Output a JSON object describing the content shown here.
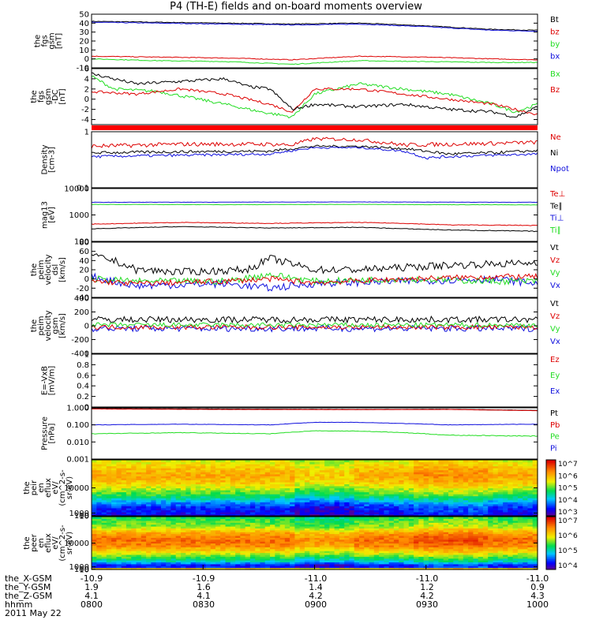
{
  "title": "P4 (TH-E) fields and on-board moments overview",
  "time_axis": {
    "ticks": [
      "0800",
      "0830",
      "0900",
      "0930",
      "1000"
    ],
    "row_labels": [
      "the_X-GSM",
      "the_Y-GSM",
      "the_Z-GSM",
      "hhmm",
      "2011 May 22"
    ],
    "ephem": [
      [
        "-10.9",
        "-10.9",
        "-11.0",
        "-11.0",
        "-11.0"
      ],
      [
        "1.9",
        "1.6",
        "1.4",
        "1.2",
        "0.9"
      ],
      [
        "4.1",
        "4.1",
        "4.2",
        "4.2",
        "4.3"
      ]
    ]
  },
  "colors": {
    "black": "#000000",
    "red": "#dd0000",
    "green": "#22dd22",
    "blue": "#1010dd"
  },
  "chart_data": [
    {
      "type": "line",
      "ylabel": [
        "the",
        "fgs",
        "gsm",
        "[nT]"
      ],
      "ylim": [
        -10,
        50
      ],
      "yticks": [
        50,
        40,
        30,
        20,
        10,
        0,
        -10
      ],
      "legend": [
        {
          "name": "Bt",
          "color": "black"
        },
        {
          "name": "bz",
          "color": "red"
        },
        {
          "name": "by",
          "color": "green"
        },
        {
          "name": "bx",
          "color": "blue"
        }
      ],
      "series": [
        {
          "name": "Bt",
          "color": "black",
          "x": [
            0,
            0.15,
            0.3,
            0.45,
            0.6,
            0.75,
            0.9,
            1
          ],
          "y": [
            42,
            41,
            40,
            39,
            40,
            37,
            33,
            32
          ],
          "noise": 0.4
        },
        {
          "name": "bx",
          "color": "blue",
          "x": [
            0,
            0.15,
            0.3,
            0.45,
            0.6,
            0.75,
            0.9,
            1
          ],
          "y": [
            41,
            40,
            39,
            38,
            39,
            36,
            32,
            31
          ],
          "noise": 0.4
        },
        {
          "name": "bz",
          "color": "red",
          "x": [
            0,
            0.15,
            0.3,
            0.45,
            0.6,
            0.75,
            0.9,
            1
          ],
          "y": [
            3,
            2,
            1,
            -1,
            3,
            2,
            0,
            -1
          ],
          "noise": 0.4
        },
        {
          "name": "by",
          "color": "green",
          "x": [
            0,
            0.15,
            0.3,
            0.45,
            0.6,
            0.75,
            0.9,
            1
          ],
          "y": [
            0,
            -2,
            -3,
            -6,
            -2,
            -3,
            -4,
            -4
          ],
          "noise": 0.4
        }
      ]
    },
    {
      "type": "line",
      "ylabel": [
        "the",
        "fgs",
        "gsm",
        "-DC",
        "[nT]"
      ],
      "ylim": [
        -5,
        6
      ],
      "yticks": [
        6,
        4,
        2,
        0,
        -2,
        -4
      ],
      "legend": [
        {
          "name": "Bx",
          "color": "green"
        },
        {
          "name": "Bz",
          "color": "red"
        }
      ],
      "series": [
        {
          "name": "Bx",
          "color": "green",
          "x": [
            0,
            0.05,
            0.15,
            0.3,
            0.38,
            0.45,
            0.5,
            0.6,
            0.7,
            0.8,
            0.9,
            0.95,
            1
          ],
          "y": [
            4.5,
            2,
            1.5,
            -1,
            -2.5,
            -3.5,
            1,
            3,
            2,
            1,
            -1,
            -2.5,
            -1
          ],
          "noise": 0.3
        },
        {
          "name": "Bz",
          "color": "red",
          "x": [
            0,
            0.1,
            0.2,
            0.3,
            0.4,
            0.45,
            0.5,
            0.6,
            0.7,
            0.8,
            0.9,
            1
          ],
          "y": [
            1.5,
            1,
            2,
            1,
            -1,
            -2.5,
            2,
            2,
            1,
            0,
            -1,
            -3
          ],
          "noise": 0.25
        },
        {
          "name": "black",
          "color": "black",
          "x": [
            0,
            0.1,
            0.2,
            0.3,
            0.35,
            0.4,
            0.45,
            0.5,
            0.6,
            0.7,
            0.8,
            0.9,
            0.95,
            1
          ],
          "y": [
            5,
            3,
            3.5,
            4,
            2.5,
            2,
            -2,
            -1,
            -1.5,
            -1,
            -2,
            -2.5,
            -3.5,
            -1.5
          ],
          "noise": 0.3
        }
      ]
    },
    {
      "type": "line",
      "scale": "log",
      "ylabel": [
        "Density",
        "[cm-3]"
      ],
      "ylim": [
        0.1,
        1.0
      ],
      "yticks": [
        1.0,
        0.1
      ],
      "legend": [
        {
          "name": "Ne",
          "color": "red"
        },
        {
          "name": "Ni",
          "color": "black"
        },
        {
          "name": "Npot",
          "color": "blue"
        }
      ],
      "series": [
        {
          "name": "Ne",
          "color": "red",
          "x": [
            0,
            0.2,
            0.4,
            0.45,
            0.5,
            0.6,
            0.7,
            0.8,
            0.9,
            1
          ],
          "y": [
            0.55,
            0.6,
            0.6,
            0.58,
            0.75,
            0.72,
            0.58,
            0.6,
            0.62,
            0.65
          ],
          "noise": 0.05
        },
        {
          "name": "Ni",
          "color": "black",
          "x": [
            0,
            0.2,
            0.4,
            0.5,
            0.6,
            0.7,
            0.8,
            0.9,
            1
          ],
          "y": [
            0.42,
            0.44,
            0.45,
            0.55,
            0.55,
            0.5,
            0.4,
            0.42,
            0.46
          ],
          "noise": 0.025
        },
        {
          "name": "Npot",
          "color": "blue",
          "x": [
            0,
            0.2,
            0.4,
            0.5,
            0.6,
            0.7,
            0.75,
            0.8,
            0.9,
            1
          ],
          "y": [
            0.36,
            0.38,
            0.4,
            0.52,
            0.52,
            0.45,
            0.34,
            0.36,
            0.38,
            0.4
          ],
          "noise": 0.02
        }
      ]
    },
    {
      "type": "line",
      "scale": "log",
      "ylabel": [
        "mag13",
        "[eV]"
      ],
      "ylim": [
        100,
        10000
      ],
      "yticks": [
        10000,
        1000,
        100
      ],
      "legend": [
        {
          "name": "Te⊥",
          "color": "red"
        },
        {
          "name": "Te∥",
          "color": "black"
        },
        {
          "name": "Ti⊥",
          "color": "blue"
        },
        {
          "name": "Ti∥",
          "color": "green"
        }
      ],
      "series": [
        {
          "name": "Ti⊥",
          "color": "blue",
          "x": [
            0,
            0.3,
            0.6,
            1
          ],
          "y": [
            3000,
            3050,
            3100,
            3000
          ],
          "noise": 40
        },
        {
          "name": "Ti∥",
          "color": "green",
          "x": [
            0,
            0.3,
            0.6,
            1
          ],
          "y": [
            2500,
            2450,
            2500,
            2400
          ],
          "noise": 40
        },
        {
          "name": "Te⊥",
          "color": "red",
          "x": [
            0,
            0.2,
            0.4,
            0.6,
            0.7,
            0.8,
            1
          ],
          "y": [
            450,
            520,
            480,
            520,
            480,
            420,
            400
          ],
          "noise": 12
        },
        {
          "name": "Te∥",
          "color": "black",
          "x": [
            0,
            0.2,
            0.4,
            0.6,
            0.7,
            0.8,
            1
          ],
          "y": [
            300,
            360,
            320,
            340,
            300,
            270,
            240
          ],
          "noise": 8
        }
      ]
    },
    {
      "type": "line",
      "ylabel": [
        "the",
        "peim",
        "velocity",
        "dsl",
        "[km/s]"
      ],
      "ylim": [
        -40,
        80
      ],
      "yticks": [
        80,
        60,
        40,
        20,
        0,
        -20,
        -40
      ],
      "legend": [
        {
          "name": "Vt",
          "color": "black"
        },
        {
          "name": "Vz",
          "color": "red"
        },
        {
          "name": "Vy",
          "color": "green"
        },
        {
          "name": "Vx",
          "color": "blue"
        }
      ],
      "series": [
        {
          "name": "Vx",
          "color": "blue",
          "x": [
            0,
            0.1,
            0.3,
            0.4,
            0.5,
            0.7,
            0.9,
            1
          ],
          "y": [
            5,
            -15,
            -10,
            -20,
            -10,
            -5,
            0,
            -10
          ],
          "noise": 8
        },
        {
          "name": "Vy",
          "color": "green",
          "x": [
            0,
            0.1,
            0.3,
            0.4,
            0.5,
            0.7,
            0.9,
            1
          ],
          "y": [
            0,
            -5,
            -5,
            10,
            -5,
            0,
            -5,
            -5
          ],
          "noise": 7
        },
        {
          "name": "Vz",
          "color": "red",
          "x": [
            0,
            0.1,
            0.3,
            0.4,
            0.5,
            0.7,
            0.9,
            1
          ],
          "y": [
            -5,
            -10,
            -5,
            0,
            -8,
            0,
            5,
            5
          ],
          "noise": 6
        },
        {
          "name": "Vt",
          "color": "black",
          "x": [
            0,
            0.05,
            0.1,
            0.2,
            0.35,
            0.4,
            0.5,
            0.6,
            0.8,
            1
          ],
          "y": [
            50,
            40,
            20,
            15,
            20,
            45,
            20,
            20,
            30,
            35
          ],
          "noise": 8
        }
      ]
    },
    {
      "type": "line",
      "ylabel": [
        "the",
        "peim",
        "velocity",
        "gsm",
        "[km/s]"
      ],
      "ylim": [
        -400,
        400
      ],
      "yticks": [
        400,
        200,
        0,
        -200,
        -400
      ],
      "legend": [
        {
          "name": "Vt",
          "color": "black"
        },
        {
          "name": "Vz",
          "color": "red"
        },
        {
          "name": "Vy",
          "color": "green"
        },
        {
          "name": "Vx",
          "color": "blue"
        }
      ],
      "series": [
        {
          "name": "Vx",
          "color": "blue",
          "x": [
            0,
            0.5,
            1
          ],
          "y": [
            -40,
            -40,
            -40
          ],
          "noise": 45
        },
        {
          "name": "Vz",
          "color": "red",
          "x": [
            0,
            0.5,
            1
          ],
          "y": [
            -20,
            -20,
            -20
          ],
          "noise": 35
        },
        {
          "name": "Vy",
          "color": "green",
          "x": [
            0,
            0.5,
            1
          ],
          "y": [
            10,
            10,
            10
          ],
          "noise": 35
        },
        {
          "name": "Vt",
          "color": "black",
          "x": [
            0,
            0.5,
            1
          ],
          "y": [
            90,
            90,
            90
          ],
          "noise": 45
        }
      ]
    },
    {
      "type": "line",
      "ylabel": [
        "E=-VxB",
        "[mV/m]"
      ],
      "ylim": [
        0,
        1.0
      ],
      "yticks": [
        1.0,
        0.8,
        0.6,
        0.4,
        0.2,
        0.0
      ],
      "legend": [
        {
          "name": "Ez",
          "color": "red"
        },
        {
          "name": "Ey",
          "color": "green"
        },
        {
          "name": "Ex",
          "color": "blue"
        }
      ],
      "series": []
    },
    {
      "type": "line",
      "scale": "log",
      "ylabel": [
        "Pressure",
        "[nPa]"
      ],
      "ylim": [
        0.001,
        1.0
      ],
      "yticks": [
        1.0,
        0.1,
        0.01,
        0.001
      ],
      "yticklabels": [
        "1.000",
        "0.100",
        "0.010",
        "0.001"
      ],
      "legend": [
        {
          "name": "Pt",
          "color": "black"
        },
        {
          "name": "Pb",
          "color": "red"
        },
        {
          "name": "Pe",
          "color": "green"
        },
        {
          "name": "Pi",
          "color": "blue"
        }
      ],
      "series": [
        {
          "name": "Pt",
          "color": "black",
          "x": [
            0,
            0.3,
            0.6,
            0.8,
            1
          ],
          "y": [
            0.9,
            0.85,
            0.8,
            0.82,
            0.7
          ],
          "noise": 0.01
        },
        {
          "name": "Pb",
          "color": "red",
          "x": [
            0,
            0.3,
            0.6,
            0.8,
            1
          ],
          "y": [
            0.85,
            0.8,
            0.78,
            0.8,
            0.68
          ],
          "noise": 0.01
        },
        {
          "name": "Pi",
          "color": "blue",
          "x": [
            0,
            0.2,
            0.4,
            0.5,
            0.6,
            0.7,
            0.8,
            1
          ],
          "y": [
            0.1,
            0.11,
            0.1,
            0.14,
            0.14,
            0.12,
            0.1,
            0.11
          ],
          "noise": 0.003
        },
        {
          "name": "Pe",
          "color": "green",
          "x": [
            0,
            0.2,
            0.4,
            0.5,
            0.6,
            0.7,
            0.8,
            1
          ],
          "y": [
            0.03,
            0.035,
            0.03,
            0.045,
            0.043,
            0.035,
            0.025,
            0.022
          ],
          "noise": 0.0012
        }
      ]
    },
    {
      "type": "heatmap",
      "ylabel": [
        "the",
        "peir",
        "en",
        "eflux",
        "eV/",
        "(cm^2-s-",
        "sr-eV)"
      ],
      "ylim": [
        10,
        20000
      ],
      "yticks": [
        10000,
        1000,
        100,
        10
      ],
      "colorbar": {
        "ticks": [
          "10^7",
          "10^6",
          "10^5",
          "10^4",
          "10^3"
        ]
      },
      "profile": {
        "logE": [
          1,
          1.5,
          1.8,
          2.2,
          2.5,
          3,
          3.4,
          3.8,
          4.3
        ],
        "level": [
          0.1,
          0.15,
          0.25,
          0.45,
          0.55,
          0.7,
          0.75,
          0.7,
          0.6
        ]
      }
    },
    {
      "type": "heatmap",
      "ylabel": [
        "the",
        "peer",
        "en",
        "eflux",
        "eV/",
        "(cm^2-s-",
        "sr-eV)"
      ],
      "ylim": [
        7,
        20000
      ],
      "yticks": [
        10000,
        1000,
        100,
        10
      ],
      "colorbar": {
        "ticks": [
          "10^7",
          "10^6",
          "10^5",
          "10^4"
        ]
      },
      "profile": {
        "logE": [
          0.85,
          1.05,
          1.4,
          1.9,
          2.4,
          2.8,
          3.2,
          3.7,
          4.3
        ],
        "level": [
          0.92,
          0.05,
          0.35,
          0.6,
          0.8,
          0.85,
          0.78,
          0.55,
          0.45
        ]
      }
    }
  ]
}
